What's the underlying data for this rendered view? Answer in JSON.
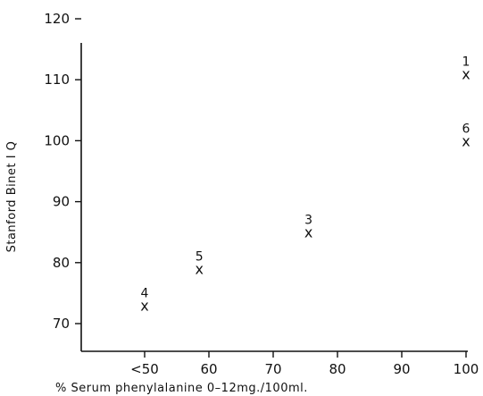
{
  "chart_data": {
    "type": "scatter",
    "xlabel": "% Serum phenylalanine 0–12mg./100ml.",
    "ylabel": "Stanford Binet I Q",
    "xlim": [
      40,
      100
    ],
    "ylim": [
      65,
      120
    ],
    "x_ticks": [
      50,
      60,
      70,
      80,
      90,
      100
    ],
    "x_tick_labels": [
      "<50",
      "60",
      "70",
      "80",
      "90",
      "100"
    ],
    "y_ticks": [
      70,
      80,
      90,
      100,
      110,
      120
    ],
    "y_tick_labels": [
      "70",
      "80",
      "90",
      "100",
      "110",
      "120"
    ],
    "points": [
      {
        "label": "4",
        "x": 50,
        "y": 73
      },
      {
        "label": "5",
        "x": 58.5,
        "y": 79
      },
      {
        "label": "3",
        "x": 75.5,
        "y": 85
      },
      {
        "label": "6",
        "x": 100,
        "y": 100
      },
      {
        "label": "1",
        "x": 100,
        "y": 111
      }
    ],
    "marker": "x",
    "grid": false
  }
}
